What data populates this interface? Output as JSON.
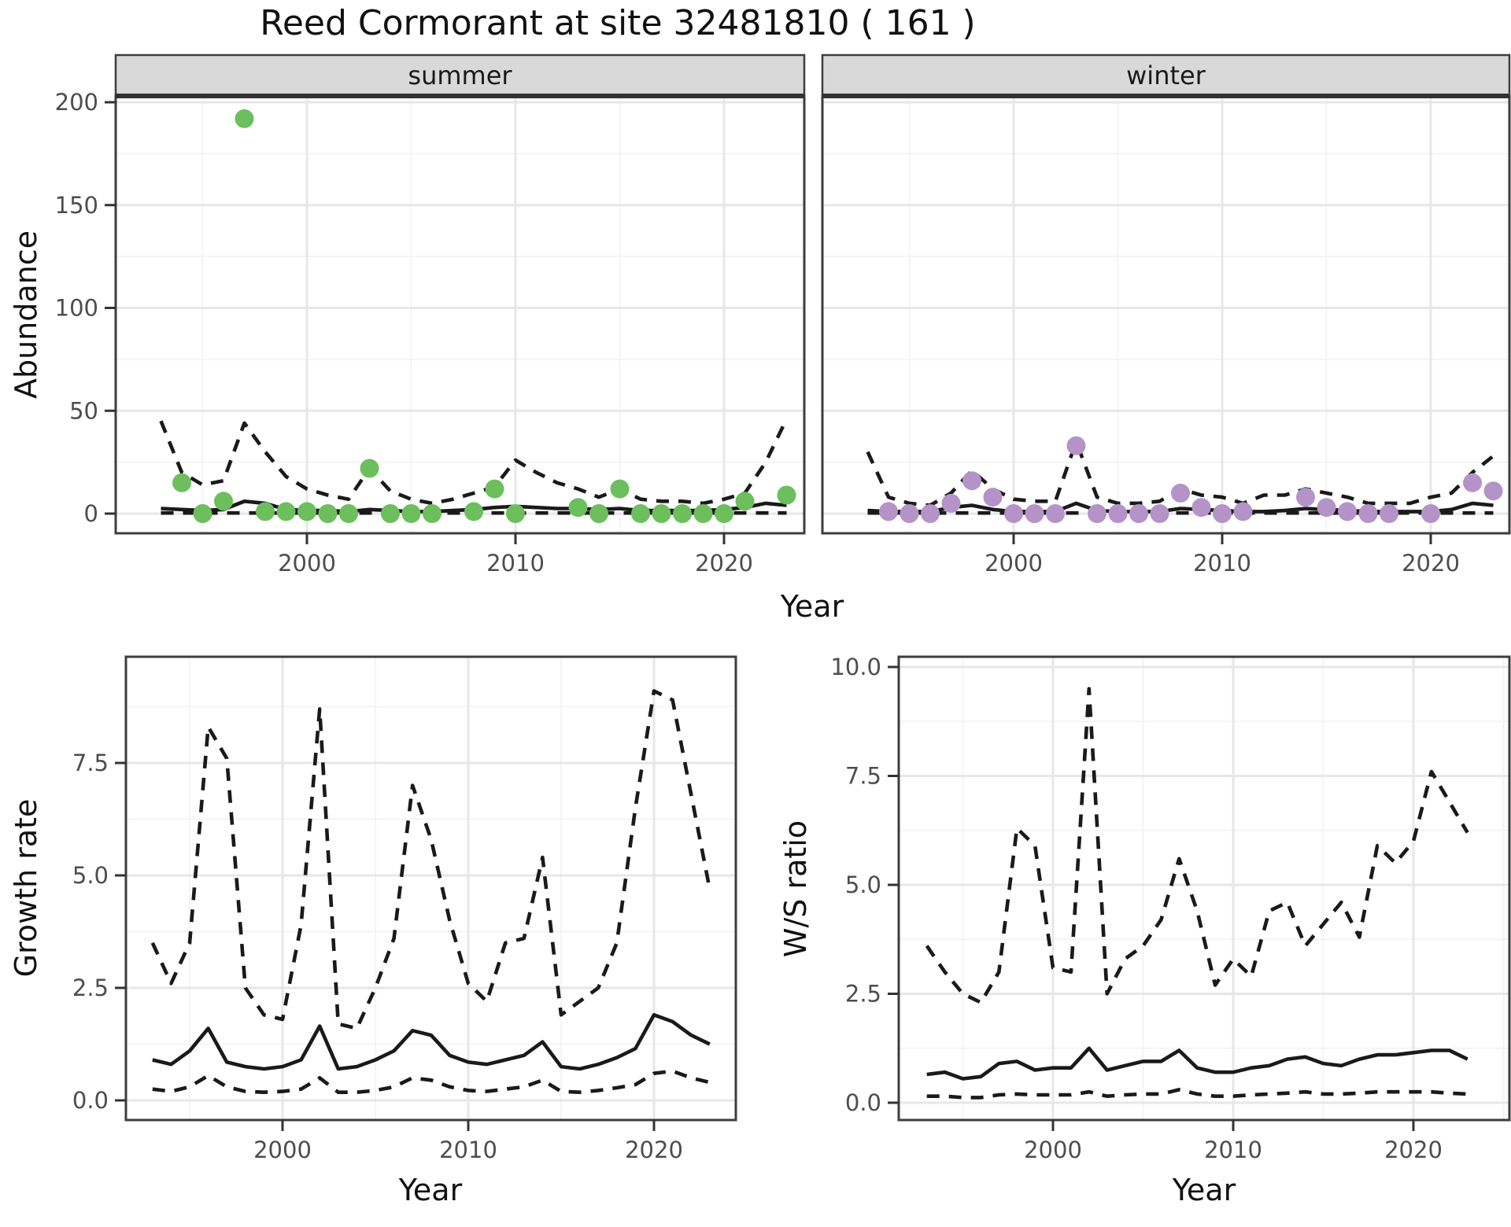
{
  "title": "Reed Cormorant at site 32481810 ( 161 )",
  "colors": {
    "summer_point": "#6cbf5c",
    "winter_point": "#b493c8",
    "model_line": "#1a1a1a",
    "strip_background": "#d9d9d9",
    "grid_major": "#e7e7e7",
    "grid_minor": "#f3f3f3",
    "tick_text": "#4d4d4d",
    "panel_border": "#3d3d3d"
  },
  "chart_data": [
    {
      "id": "abundance-summer",
      "type": "scatter",
      "facet": "summer",
      "xlabel": "Year",
      "ylabel": "Abundance",
      "xlim": [
        1990.8,
        2023.9
      ],
      "ylim": [
        -9.6,
        203
      ],
      "xticks": [
        2000,
        2010,
        2020
      ],
      "xtick_labels": [
        "2000",
        "2010",
        "2020"
      ],
      "yticks": [
        0,
        50,
        100,
        150,
        200
      ],
      "ytick_labels": [
        "0",
        "50",
        "100",
        "150",
        "200"
      ],
      "grid": "on",
      "legend": "none",
      "point_color": "#6cbf5c",
      "points": {
        "years": [
          1994,
          1995,
          1996,
          1997,
          1998,
          1999,
          2000,
          2001,
          2002,
          2003,
          2004,
          2005,
          2006,
          2008,
          2009,
          2010,
          2013,
          2014,
          2015,
          2016,
          2017,
          2018,
          2019,
          2020,
          2021,
          2023
        ],
        "values": [
          15,
          0,
          6,
          192,
          1,
          1,
          1,
          0,
          0,
          22,
          0,
          0,
          0,
          1,
          12,
          0,
          3,
          0,
          12,
          0,
          0,
          0,
          0,
          0,
          6,
          9
        ]
      },
      "series": [
        {
          "name": "model-fit",
          "style": "solid",
          "years": [
            1993,
            1994,
            1995,
            1996,
            1997,
            1998,
            1999,
            2000,
            2001,
            2002,
            2003,
            2004,
            2005,
            2006,
            2007,
            2008,
            2009,
            2010,
            2011,
            2012,
            2013,
            2014,
            2015,
            2016,
            2017,
            2018,
            2019,
            2020,
            2021,
            2022,
            2023
          ],
          "values": [
            2.5,
            2,
            1.5,
            2,
            6,
            5,
            2,
            1.5,
            1.5,
            1,
            2,
            1.5,
            1,
            1,
            1.5,
            2,
            3,
            3.5,
            3,
            2.5,
            2.5,
            2,
            2.5,
            1.5,
            1.5,
            1.5,
            1.5,
            2,
            3,
            5,
            4
          ]
        },
        {
          "name": "upper-ci",
          "style": "dashed",
          "years": [
            1993,
            1994,
            1995,
            1996,
            1997,
            1998,
            1999,
            2000,
            2001,
            2002,
            2003,
            2004,
            2005,
            2006,
            2007,
            2008,
            2009,
            2010,
            2011,
            2012,
            2013,
            2014,
            2015,
            2016,
            2017,
            2018,
            2019,
            2020,
            2021,
            2022,
            2023
          ],
          "values": [
            45,
            20,
            14,
            16,
            44,
            30,
            18,
            12,
            9,
            7,
            22,
            11,
            7,
            5,
            7,
            10,
            13,
            26,
            20,
            15,
            12,
            8,
            12,
            7,
            6,
            6,
            5,
            7,
            10,
            25,
            46
          ]
        },
        {
          "name": "lower-ci",
          "style": "dashed",
          "years": [
            1993,
            1994,
            1995,
            1996,
            1997,
            1998,
            1999,
            2000,
            2001,
            2002,
            2003,
            2004,
            2005,
            2006,
            2007,
            2008,
            2009,
            2010,
            2011,
            2012,
            2013,
            2014,
            2015,
            2016,
            2017,
            2018,
            2019,
            2020,
            2021,
            2022,
            2023
          ],
          "values": [
            0.3,
            0.3,
            0.3,
            0.3,
            0.3,
            0.3,
            0.3,
            0.3,
            0.3,
            0.3,
            0.3,
            0.3,
            0.3,
            0.3,
            0.3,
            0.3,
            0.3,
            0.3,
            0.3,
            0.3,
            0.3,
            0.3,
            0.3,
            0.3,
            0.3,
            0.3,
            0.3,
            0.3,
            0.3,
            0.3,
            0.3
          ]
        }
      ]
    },
    {
      "id": "abundance-winter",
      "type": "scatter",
      "facet": "winter",
      "xlabel": "Year",
      "ylabel": "Abundance",
      "xlim": [
        1990.8,
        2023.8
      ],
      "ylim": [
        -9.6,
        203
      ],
      "xticks": [
        2000,
        2010,
        2020
      ],
      "xtick_labels": [
        "2000",
        "2010",
        "2020"
      ],
      "yticks": [
        0,
        50,
        100,
        150,
        200
      ],
      "ytick_labels": [
        "0",
        "50",
        "100",
        "150",
        "200"
      ],
      "grid": "on",
      "legend": "none",
      "point_color": "#b493c8",
      "points": {
        "years": [
          1994,
          1995,
          1996,
          1997,
          1998,
          1999,
          2000,
          2001,
          2002,
          2003,
          2004,
          2005,
          2006,
          2007,
          2008,
          2009,
          2010,
          2011,
          2014,
          2015,
          2016,
          2017,
          2018,
          2020,
          2022,
          2023
        ],
        "values": [
          1,
          0,
          0,
          5,
          16,
          8,
          0,
          0,
          0,
          33,
          0,
          0,
          0,
          0,
          10,
          3,
          0,
          1,
          8,
          3,
          1,
          0,
          0,
          0,
          15,
          11
        ]
      },
      "series": [
        {
          "name": "model-fit",
          "style": "solid",
          "years": [
            1993,
            1994,
            1995,
            1996,
            1997,
            1998,
            1999,
            2000,
            2001,
            2002,
            2003,
            2004,
            2005,
            2006,
            2007,
            2008,
            2009,
            2010,
            2011,
            2012,
            2013,
            2014,
            2015,
            2016,
            2017,
            2018,
            2019,
            2020,
            2021,
            2022,
            2023
          ],
          "values": [
            1.5,
            1,
            1,
            1,
            3,
            4,
            2,
            1,
            1,
            1,
            5,
            1.5,
            1,
            1,
            1,
            2.5,
            2,
            1.5,
            1,
            1,
            1.5,
            2.5,
            2,
            1.5,
            1,
            1,
            1,
            1,
            2,
            5,
            4
          ]
        },
        {
          "name": "upper-ci",
          "style": "dashed",
          "years": [
            1993,
            1994,
            1995,
            1996,
            1997,
            1998,
            1999,
            2000,
            2001,
            2002,
            2003,
            2004,
            2005,
            2006,
            2007,
            2008,
            2009,
            2010,
            2011,
            2012,
            2013,
            2014,
            2015,
            2016,
            2017,
            2018,
            2019,
            2020,
            2021,
            2022,
            2023
          ],
          "values": [
            30,
            8,
            5,
            4,
            10,
            21,
            12,
            7,
            6,
            6,
            35,
            8,
            5,
            5,
            6,
            12,
            9,
            8,
            5,
            9,
            9,
            12,
            10,
            8,
            5,
            5,
            5,
            8,
            10,
            20,
            28
          ]
        },
        {
          "name": "lower-ci",
          "style": "dashed",
          "years": [
            1993,
            1994,
            1995,
            1996,
            1997,
            1998,
            1999,
            2000,
            2001,
            2002,
            2003,
            2004,
            2005,
            2006,
            2007,
            2008,
            2009,
            2010,
            2011,
            2012,
            2013,
            2014,
            2015,
            2016,
            2017,
            2018,
            2019,
            2020,
            2021,
            2022,
            2023
          ],
          "values": [
            0.3,
            0.3,
            0.3,
            0.3,
            0.3,
            0.3,
            0.3,
            0.3,
            0.3,
            0.3,
            0.3,
            0.3,
            0.3,
            0.3,
            0.3,
            0.3,
            0.3,
            0.3,
            0.3,
            0.3,
            0.3,
            0.3,
            0.3,
            0.3,
            0.3,
            0.3,
            0.3,
            0.3,
            0.3,
            0.3,
            0.3
          ]
        }
      ]
    },
    {
      "id": "growth-rate",
      "type": "line",
      "facet": null,
      "xlabel": "Year",
      "ylabel": "Growth rate",
      "xlim": [
        1991.6,
        2024.4
      ],
      "ylim": [
        -0.42,
        9.86
      ],
      "xticks": [
        2000,
        2010,
        2020
      ],
      "xtick_labels": [
        "2000",
        "2010",
        "2020"
      ],
      "yticks": [
        0,
        2.5,
        5,
        7.5
      ],
      "ytick_labels": [
        "0.0",
        "2.5",
        "5.0",
        "7.5"
      ],
      "grid": "on",
      "legend": "none",
      "series": [
        {
          "name": "model-fit",
          "style": "solid",
          "years": [
            1993,
            1994,
            1995,
            1996,
            1997,
            1998,
            1999,
            2000,
            2001,
            2002,
            2003,
            2004,
            2005,
            2006,
            2007,
            2008,
            2009,
            2010,
            2011,
            2012,
            2013,
            2014,
            2015,
            2016,
            2017,
            2018,
            2019,
            2020,
            2021,
            2022,
            2023
          ],
          "values": [
            0.9,
            0.8,
            1.1,
            1.6,
            0.85,
            0.75,
            0.7,
            0.75,
            0.9,
            1.65,
            0.7,
            0.75,
            0.9,
            1.1,
            1.55,
            1.45,
            1.0,
            0.85,
            0.8,
            0.9,
            1.0,
            1.3,
            0.75,
            0.7,
            0.8,
            0.95,
            1.15,
            1.9,
            1.75,
            1.45,
            1.25
          ]
        },
        {
          "name": "upper-ci",
          "style": "dashed",
          "years": [
            1993,
            1994,
            1995,
            1996,
            1997,
            1998,
            1999,
            2000,
            2001,
            2002,
            2003,
            2004,
            2005,
            2006,
            2007,
            2008,
            2009,
            2010,
            2011,
            2012,
            2013,
            2014,
            2015,
            2016,
            2017,
            2018,
            2019,
            2020,
            2021,
            2022,
            2023
          ],
          "values": [
            3.5,
            2.6,
            3.5,
            8.3,
            7.6,
            2.5,
            1.9,
            1.8,
            3.9,
            8.7,
            1.7,
            1.6,
            2.5,
            3.6,
            7.0,
            5.8,
            4.0,
            2.6,
            2.2,
            3.5,
            3.6,
            5.4,
            1.9,
            2.2,
            2.5,
            3.5,
            6.5,
            9.1,
            8.9,
            6.8,
            4.7
          ]
        },
        {
          "name": "lower-ci",
          "style": "dashed",
          "years": [
            1993,
            1994,
            1995,
            1996,
            1997,
            1998,
            1999,
            2000,
            2001,
            2002,
            2003,
            2004,
            2005,
            2006,
            2007,
            2008,
            2009,
            2010,
            2011,
            2012,
            2013,
            2014,
            2015,
            2016,
            2017,
            2018,
            2019,
            2020,
            2021,
            2022,
            2023
          ],
          "values": [
            0.25,
            0.2,
            0.3,
            0.55,
            0.3,
            0.2,
            0.18,
            0.2,
            0.25,
            0.5,
            0.18,
            0.18,
            0.22,
            0.3,
            0.5,
            0.45,
            0.3,
            0.22,
            0.2,
            0.25,
            0.3,
            0.45,
            0.2,
            0.18,
            0.22,
            0.28,
            0.35,
            0.6,
            0.65,
            0.5,
            0.4
          ]
        }
      ]
    },
    {
      "id": "ws-ratio",
      "type": "line",
      "facet": null,
      "xlabel": "Year",
      "ylabel": "W/S ratio",
      "xlim": [
        1991.4,
        2025.3
      ],
      "ylim": [
        -0.42,
        10.23
      ],
      "xticks": [
        2000,
        2010,
        2020
      ],
      "xtick_labels": [
        "2000",
        "2010",
        "2020"
      ],
      "yticks": [
        0,
        2.5,
        5,
        7.5,
        10
      ],
      "ytick_labels": [
        "0.0",
        "2.5",
        "5.0",
        "7.5",
        "10.0"
      ],
      "grid": "on",
      "legend": "none",
      "series": [
        {
          "name": "model-fit",
          "style": "solid",
          "years": [
            1993,
            1994,
            1995,
            1996,
            1997,
            1998,
            1999,
            2000,
            2001,
            2002,
            2003,
            2004,
            2005,
            2006,
            2007,
            2008,
            2009,
            2010,
            2011,
            2012,
            2013,
            2014,
            2015,
            2016,
            2017,
            2018,
            2019,
            2020,
            2021,
            2022,
            2023
          ],
          "values": [
            0.65,
            0.7,
            0.55,
            0.6,
            0.9,
            0.95,
            0.75,
            0.8,
            0.8,
            1.25,
            0.75,
            0.85,
            0.95,
            0.95,
            1.2,
            0.8,
            0.7,
            0.7,
            0.8,
            0.85,
            1.0,
            1.05,
            0.9,
            0.85,
            1.0,
            1.1,
            1.1,
            1.15,
            1.2,
            1.2,
            1.0
          ]
        },
        {
          "name": "upper-ci",
          "style": "dashed",
          "years": [
            1993,
            1994,
            1995,
            1996,
            1997,
            1998,
            1999,
            2000,
            2001,
            2002,
            2003,
            2004,
            2005,
            2006,
            2007,
            2008,
            2009,
            2010,
            2011,
            2012,
            2013,
            2014,
            2015,
            2016,
            2017,
            2018,
            2019,
            2020,
            2021,
            2022,
            2023
          ],
          "values": [
            3.6,
            3.0,
            2.5,
            2.3,
            3.0,
            6.3,
            5.9,
            3.1,
            3.0,
            9.5,
            2.5,
            3.3,
            3.6,
            4.2,
            5.6,
            4.4,
            2.7,
            3.3,
            2.9,
            4.4,
            4.6,
            3.6,
            4.1,
            4.6,
            3.8,
            5.9,
            5.5,
            6.0,
            7.6,
            6.9,
            6.2
          ]
        },
        {
          "name": "lower-ci",
          "style": "dashed",
          "years": [
            1993,
            1994,
            1995,
            1996,
            1997,
            1998,
            1999,
            2000,
            2001,
            2002,
            2003,
            2004,
            2005,
            2006,
            2007,
            2008,
            2009,
            2010,
            2011,
            2012,
            2013,
            2014,
            2015,
            2016,
            2017,
            2018,
            2019,
            2020,
            2021,
            2022,
            2023
          ],
          "values": [
            0.15,
            0.15,
            0.12,
            0.12,
            0.18,
            0.2,
            0.18,
            0.18,
            0.18,
            0.25,
            0.15,
            0.18,
            0.2,
            0.2,
            0.3,
            0.2,
            0.15,
            0.15,
            0.18,
            0.2,
            0.22,
            0.25,
            0.2,
            0.2,
            0.22,
            0.25,
            0.25,
            0.25,
            0.25,
            0.22,
            0.2
          ]
        }
      ]
    }
  ]
}
